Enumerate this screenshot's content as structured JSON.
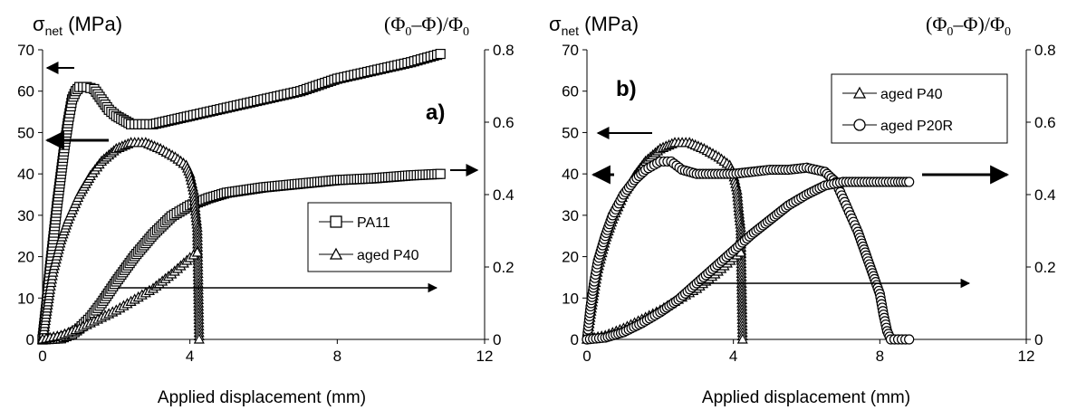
{
  "chart_data": [
    {
      "type": "line",
      "panel_label": "a)",
      "ylabel": "σnet (MPa)",
      "ylabel_main": "σ",
      "ylabel_sub": "net",
      "ylabel_unit": " (MPa)",
      "y2label": "(Φ0–Φ)/Φ0",
      "y2label_parts": [
        "(Φ",
        "0",
        "–Φ)/Φ",
        "0"
      ],
      "xlabel": "Applied displacement (mm)",
      "xlim": [
        0,
        12
      ],
      "ylim": [
        0,
        70
      ],
      "y2lim": [
        0,
        0.8
      ],
      "xticks": [
        "0",
        "4",
        "8",
        "12"
      ],
      "yticks": [
        "0",
        "10",
        "20",
        "30",
        "40",
        "50",
        "60",
        "70"
      ],
      "y2ticks": [
        "0",
        "0.2",
        "0.4",
        "0.6",
        "0.8"
      ],
      "legend_position": "center-right",
      "series": [
        {
          "name": "PA11",
          "marker": "square",
          "axis": "left",
          "x": [
            0,
            0.1,
            0.2,
            0.3,
            0.4,
            0.5,
            0.6,
            0.7,
            0.8,
            0.9,
            1.0,
            1.2,
            1.4,
            1.6,
            1.8,
            2.0,
            2.2,
            2.4,
            2.6,
            2.8,
            3.0,
            3.5,
            4.0,
            5.0,
            6.0,
            7.0,
            8.0,
            9.0,
            10.0,
            10.8
          ],
          "y": [
            0,
            8,
            17,
            25,
            33,
            40,
            47,
            53,
            58,
            60,
            61,
            61,
            60.5,
            58,
            55.5,
            54,
            53,
            52,
            52,
            52,
            52,
            53,
            54,
            56,
            58,
            60,
            63,
            65,
            67,
            69
          ]
        },
        {
          "name": "PA11",
          "marker": "square",
          "axis": "right",
          "x": [
            0,
            0.5,
            0.8,
            1.0,
            1.3,
            1.6,
            2.0,
            2.5,
            3.0,
            3.5,
            4.0,
            4.5,
            5.0,
            6.0,
            7.0,
            8.0,
            9.0,
            10.0,
            10.8
          ],
          "y": [
            0,
            0.003,
            0.015,
            0.03,
            0.06,
            0.1,
            0.16,
            0.23,
            0.29,
            0.34,
            0.37,
            0.39,
            0.405,
            0.42,
            0.43,
            0.44,
            0.445,
            0.453,
            0.457
          ]
        },
        {
          "name": "aged P40",
          "marker": "triangle",
          "axis": "left",
          "x": [
            0,
            0.1,
            0.2,
            0.3,
            0.5,
            0.7,
            1.0,
            1.3,
            1.6,
            2.0,
            2.4,
            2.8,
            3.2,
            3.6,
            3.9,
            4.0,
            4.1,
            4.15,
            4.2,
            4.25
          ],
          "y": [
            0,
            6,
            12,
            17,
            24,
            29,
            35,
            39.5,
            43,
            46,
            47.5,
            47.5,
            46,
            44,
            42,
            40,
            36,
            31,
            27,
            0
          ]
        },
        {
          "name": "aged P40",
          "marker": "triangle",
          "axis": "right",
          "x": [
            0,
            0.5,
            1.0,
            1.5,
            2.0,
            2.5,
            3.0,
            3.5,
            4.0,
            4.2
          ],
          "y": [
            0,
            0.01,
            0.03,
            0.055,
            0.08,
            0.11,
            0.14,
            0.18,
            0.225,
            0.24
          ]
        }
      ],
      "legend": [
        {
          "label": "PA11",
          "marker": "square"
        },
        {
          "label": "aged P40",
          "marker": "triangle"
        }
      ]
    },
    {
      "type": "line",
      "panel_label": "b)",
      "ylabel": "σnet (MPa)",
      "ylabel_main": "σ",
      "ylabel_sub": "net",
      "ylabel_unit": " (MPa)",
      "y2label": "(Φ0–Φ)/Φ0",
      "y2label_parts": [
        "(Φ",
        "0",
        "–Φ)/Φ",
        "0"
      ],
      "xlabel": "Applied displacement (mm)",
      "xlim": [
        0,
        12
      ],
      "ylim": [
        0,
        70
      ],
      "y2lim": [
        0,
        0.8
      ],
      "xticks": [
        "0",
        "4",
        "8",
        "12"
      ],
      "yticks": [
        "0",
        "10",
        "20",
        "30",
        "40",
        "50",
        "60",
        "70"
      ],
      "y2ticks": [
        "0",
        "0.2",
        "0.4",
        "0.6",
        "0.8"
      ],
      "legend_position": "top-right",
      "series": [
        {
          "name": "aged P40",
          "marker": "triangle",
          "axis": "left",
          "x": [
            0,
            0.1,
            0.2,
            0.3,
            0.5,
            0.7,
            1.0,
            1.3,
            1.6,
            2.0,
            2.4,
            2.8,
            3.2,
            3.6,
            3.9,
            4.0,
            4.1,
            4.15,
            4.2,
            4.25
          ],
          "y": [
            0,
            6,
            12,
            17,
            24,
            29,
            35,
            39.5,
            43,
            46,
            47.5,
            47.5,
            46,
            44,
            42,
            40,
            36,
            31,
            27,
            0
          ]
        },
        {
          "name": "aged P40",
          "marker": "triangle",
          "axis": "right",
          "x": [
            0,
            0.5,
            1.0,
            1.5,
            2.0,
            2.5,
            3.0,
            3.5,
            4.0,
            4.2
          ],
          "y": [
            0,
            0.01,
            0.03,
            0.055,
            0.08,
            0.11,
            0.14,
            0.18,
            0.225,
            0.24
          ]
        },
        {
          "name": "aged P20R",
          "marker": "circle",
          "axis": "left",
          "x": [
            0,
            0.1,
            0.2,
            0.3,
            0.5,
            0.7,
            1.0,
            1.3,
            1.6,
            2.0,
            2.3,
            2.6,
            3.0,
            3.5,
            4.0,
            4.5,
            5.0,
            5.5,
            6.0,
            6.5,
            6.8,
            7.0,
            7.2,
            7.4,
            7.6,
            7.8,
            8.0,
            8.1,
            8.2,
            8.3,
            8.4,
            8.6,
            8.8
          ],
          "y": [
            0,
            8,
            14,
            19,
            25,
            30,
            35,
            38.5,
            41,
            43,
            43,
            41,
            40,
            40,
            40,
            40.5,
            41,
            41,
            41.5,
            40.5,
            38,
            34,
            30,
            26,
            21,
            16,
            11,
            6,
            2,
            0,
            0,
            0,
            0
          ]
        },
        {
          "name": "aged P20R",
          "marker": "circle",
          "axis": "right",
          "x": [
            0,
            0.5,
            1.0,
            1.5,
            2.0,
            2.5,
            3.0,
            3.5,
            4.0,
            4.5,
            5.0,
            5.5,
            6.0,
            6.5,
            7.0,
            7.5,
            8.0,
            8.5,
            8.8
          ],
          "y": [
            0,
            0.005,
            0.02,
            0.045,
            0.075,
            0.11,
            0.155,
            0.2,
            0.245,
            0.29,
            0.33,
            0.37,
            0.4,
            0.425,
            0.435,
            0.435,
            0.435,
            0.435,
            0.435
          ]
        }
      ],
      "legend": [
        {
          "label": "aged P40",
          "marker": "triangle"
        },
        {
          "label": "aged P20R",
          "marker": "circle"
        }
      ]
    }
  ]
}
